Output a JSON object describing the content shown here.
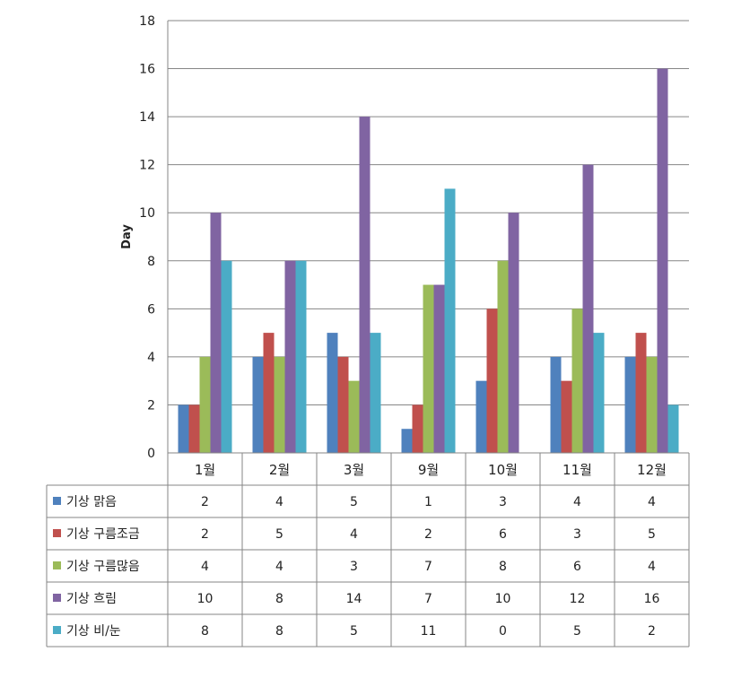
{
  "chart_data": {
    "type": "bar",
    "title": "",
    "xlabel": "",
    "ylabel": "Day",
    "ylim": [
      0,
      18
    ],
    "yticks": [
      0,
      2,
      4,
      6,
      8,
      10,
      12,
      14,
      16,
      18
    ],
    "grid": true,
    "legend": "data-table",
    "categories": [
      "1월",
      "2월",
      "3월",
      "9월",
      "10월",
      "11월",
      "12월"
    ],
    "series": [
      {
        "name": "기상 맑음",
        "color": "#4f81bd",
        "values": [
          2,
          4,
          5,
          1,
          3,
          4,
          4
        ]
      },
      {
        "name": "기상 구름조금",
        "color": "#c0504d",
        "values": [
          2,
          5,
          4,
          2,
          6,
          3,
          5
        ]
      },
      {
        "name": "기상 구름많음",
        "color": "#9bbb59",
        "values": [
          4,
          4,
          3,
          7,
          8,
          6,
          4
        ]
      },
      {
        "name": "기상 흐림",
        "color": "#8064a2",
        "values": [
          10,
          8,
          14,
          7,
          10,
          12,
          16
        ]
      },
      {
        "name": "기상 비/눈",
        "color": "#4bacc6",
        "values": [
          8,
          8,
          5,
          11,
          0,
          5,
          2
        ]
      }
    ]
  }
}
